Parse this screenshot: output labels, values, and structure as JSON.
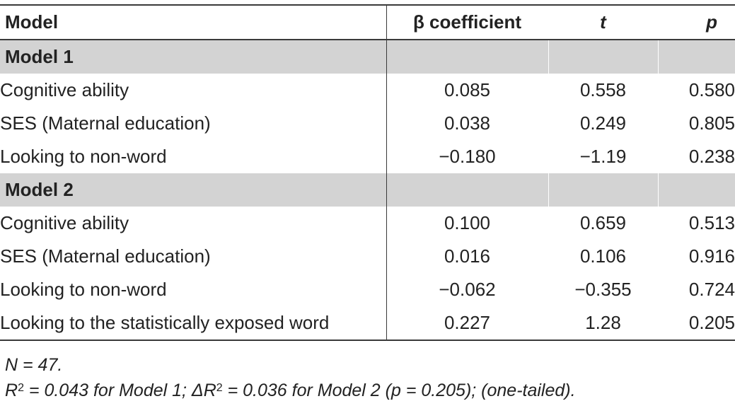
{
  "table": {
    "headers": {
      "model": "Model",
      "beta": "β coefficient",
      "t": "t",
      "p": "p"
    },
    "sections": [
      {
        "label": "Model 1",
        "rows": [
          {
            "variable": "Cognitive ability",
            "beta": "0.085",
            "t": "0.558",
            "p": "0.580"
          },
          {
            "variable": "SES (Maternal education)",
            "beta": "0.038",
            "t": "0.249",
            "p": "0.805"
          },
          {
            "variable": "Looking to non-word",
            "beta": "−0.180",
            "t": "−1.19",
            "p": "0.238"
          }
        ]
      },
      {
        "label": "Model 2",
        "rows": [
          {
            "variable": "Cognitive ability",
            "beta": "0.100",
            "t": "0.659",
            "p": "0.513"
          },
          {
            "variable": "SES (Maternal education)",
            "beta": "0.016",
            "t": "0.106",
            "p": "0.916"
          },
          {
            "variable": "Looking to non-word",
            "beta": "−0.062",
            "t": "−0.355",
            "p": "0.724"
          },
          {
            "variable": "Looking to the statistically exposed word",
            "beta": "0.227",
            "t": "1.28",
            "p": "0.205"
          }
        ]
      }
    ]
  },
  "notes": {
    "n_line": "N = 47.",
    "r2_prefix": "R",
    "r2_sup": "2",
    "r2_mid": " = 0.043 for Model 1; ΔR",
    "dr2_sup": "2",
    "r2_suffix": " = 0.036 for Model 2 (p = 0.205); (one-tailed)."
  }
}
